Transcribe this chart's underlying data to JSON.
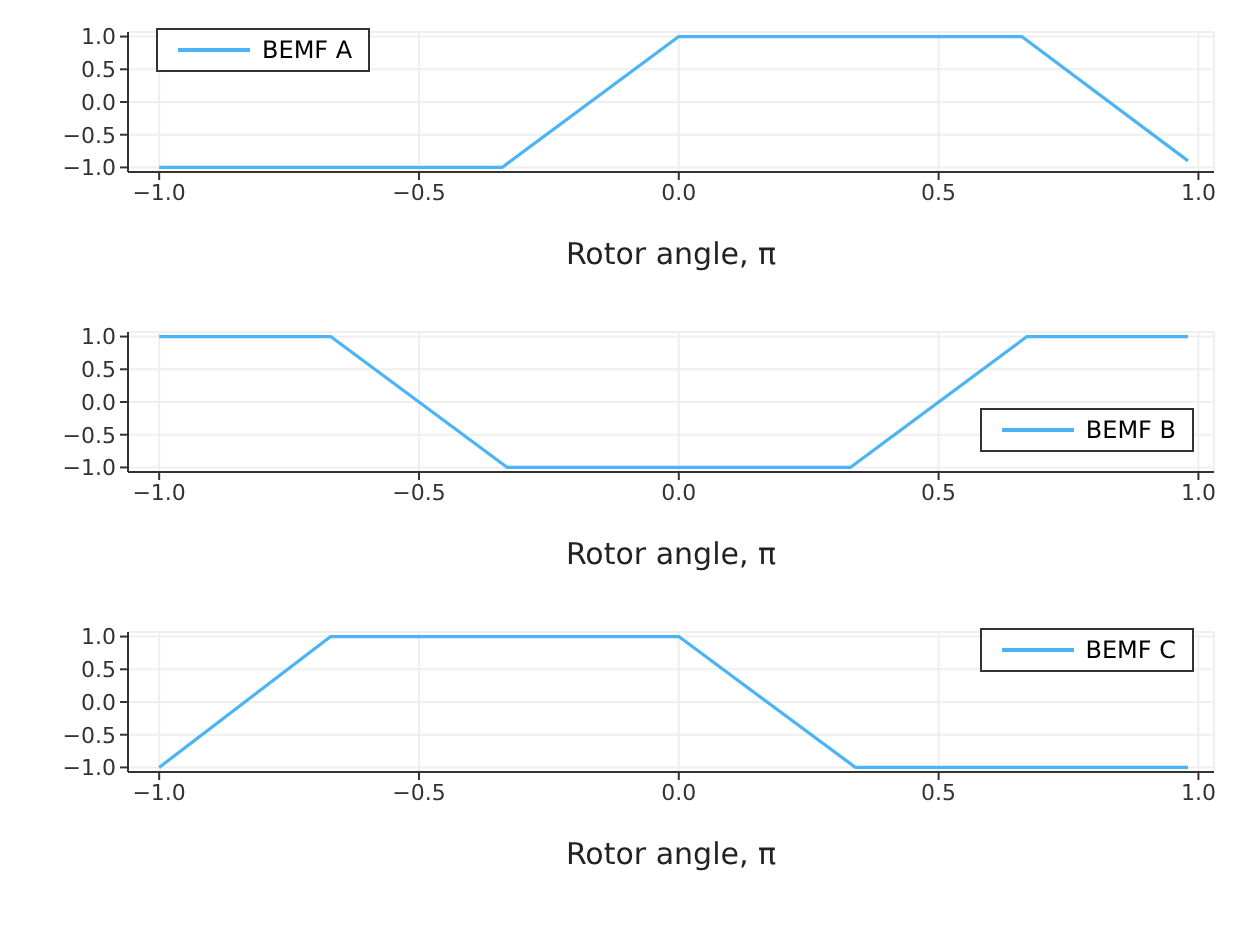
{
  "chart_data": [
    {
      "type": "line",
      "xlabel": "Rotor angle, π",
      "xlim": [
        -1.06,
        1.03
      ],
      "ylim": [
        -1.07,
        1.07
      ],
      "xticks": [
        {
          "value": -1,
          "label": "−1.0"
        },
        {
          "value": -0.5,
          "label": "−0.5"
        },
        {
          "value": 0,
          "label": "0.0"
        },
        {
          "value": 0.5,
          "label": "0.5"
        },
        {
          "value": 1,
          "label": "1.0"
        }
      ],
      "yticks": [
        {
          "value": -1,
          "label": "−1.0"
        },
        {
          "value": -0.5,
          "label": "−0.5"
        },
        {
          "value": 0,
          "label": "0.0"
        },
        {
          "value": 0.5,
          "label": "0.5"
        },
        {
          "value": 1,
          "label": "1.0"
        }
      ],
      "grid": true,
      "legend": "top left",
      "x": [
        -1,
        -0.34,
        0,
        0.66,
        0.98
      ],
      "series": [
        {
          "name": "BEMF A",
          "color": "#4ab4f7",
          "values": [
            -1,
            -1,
            1,
            1,
            -0.9
          ]
        }
      ]
    },
    {
      "type": "line",
      "xlabel": "Rotor angle, π",
      "xlim": [
        -1.06,
        1.03
      ],
      "ylim": [
        -1.07,
        1.07
      ],
      "xticks": [
        {
          "value": -1,
          "label": "−1.0"
        },
        {
          "value": -0.5,
          "label": "−0.5"
        },
        {
          "value": 0,
          "label": "0.0"
        },
        {
          "value": 0.5,
          "label": "0.5"
        },
        {
          "value": 1,
          "label": "1.0"
        }
      ],
      "yticks": [
        {
          "value": -1,
          "label": "−1.0"
        },
        {
          "value": -0.5,
          "label": "−0.5"
        },
        {
          "value": 0,
          "label": "0.0"
        },
        {
          "value": 0.5,
          "label": "0.5"
        },
        {
          "value": 1,
          "label": "1.0"
        }
      ],
      "grid": true,
      "legend": "bottom right",
      "x": [
        -1,
        -0.67,
        -0.33,
        0.33,
        0.67,
        0.98
      ],
      "series": [
        {
          "name": "BEMF B",
          "color": "#4ab4f7",
          "values": [
            1,
            1,
            -1,
            -1,
            1,
            1
          ]
        }
      ]
    },
    {
      "type": "line",
      "xlabel": "Rotor angle, π",
      "xlim": [
        -1.06,
        1.03
      ],
      "ylim": [
        -1.07,
        1.07
      ],
      "xticks": [
        {
          "value": -1,
          "label": "−1.0"
        },
        {
          "value": -0.5,
          "label": "−0.5"
        },
        {
          "value": 0,
          "label": "0.0"
        },
        {
          "value": 0.5,
          "label": "0.5"
        },
        {
          "value": 1,
          "label": "1.0"
        }
      ],
      "yticks": [
        {
          "value": -1,
          "label": "−1.0"
        },
        {
          "value": -0.5,
          "label": "−0.5"
        },
        {
          "value": 0,
          "label": "0.0"
        },
        {
          "value": 0.5,
          "label": "0.5"
        },
        {
          "value": 1,
          "label": "1.0"
        }
      ],
      "grid": true,
      "legend": "top right",
      "x": [
        -1,
        -0.67,
        0,
        0.34,
        0.98
      ],
      "series": [
        {
          "name": "BEMF C",
          "color": "#4ab4f7",
          "values": [
            -1,
            1,
            1,
            -1,
            -1
          ]
        }
      ]
    }
  ]
}
